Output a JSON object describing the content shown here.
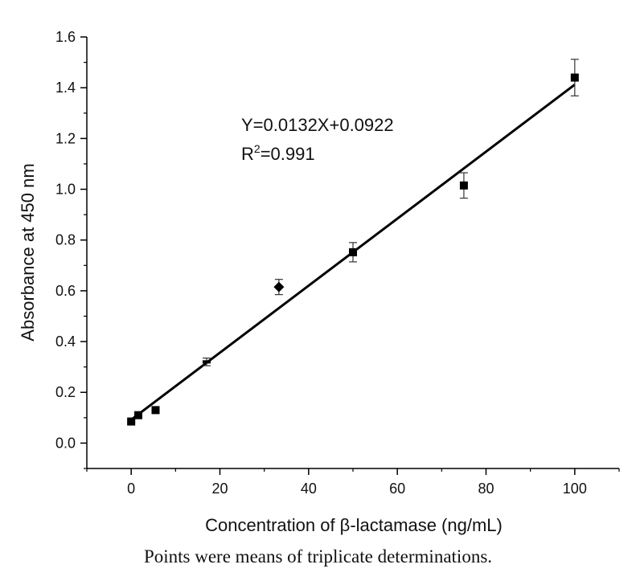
{
  "chart_data": {
    "type": "scatter",
    "xlabel": "Concentration of β-lactamase (ng/mL)",
    "ylabel": "Absorbance at 450 nm",
    "xlim": [
      -10,
      110
    ],
    "ylim": [
      -0.1,
      1.6
    ],
    "x_ticks": [
      0,
      20,
      40,
      60,
      80,
      100
    ],
    "y_ticks": [
      0.0,
      0.2,
      0.4,
      0.6,
      0.8,
      1.0,
      1.2,
      1.4,
      1.6
    ],
    "x_tick_labels": [
      "0",
      "20",
      "40",
      "60",
      "80",
      "100"
    ],
    "y_tick_labels": [
      "0.0",
      "0.2",
      "0.4",
      "0.6",
      "0.8",
      "1.0",
      "1.2",
      "1.4",
      "1.6"
    ],
    "grid": false,
    "points": [
      {
        "x": 0,
        "y": 0.085,
        "err": 0.005,
        "marker": "square"
      },
      {
        "x": 1.6,
        "y": 0.11,
        "err": 0.007,
        "marker": "square"
      },
      {
        "x": 5.5,
        "y": 0.13,
        "err": 0.007,
        "marker": "square"
      },
      {
        "x": 17,
        "y": 0.32,
        "err": 0.015,
        "marker": "dash"
      },
      {
        "x": 33.3,
        "y": 0.615,
        "err": 0.03,
        "marker": "diamond"
      },
      {
        "x": 50,
        "y": 0.752,
        "err": 0.038,
        "marker": "square"
      },
      {
        "x": 75,
        "y": 1.015,
        "err": 0.05,
        "marker": "square"
      },
      {
        "x": 100,
        "y": 1.44,
        "err": 0.072,
        "marker": "square"
      }
    ],
    "fit": {
      "slope": 0.0132,
      "intercept": 0.0922,
      "x_range": [
        0,
        100
      ]
    },
    "annotations": {
      "equation": "Y=0.0132X+0.0922",
      "r2_prefix": "R",
      "r2_sup": "2",
      "r2_value": "=0.991"
    }
  },
  "caption": "Points were means of triplicate determinations."
}
